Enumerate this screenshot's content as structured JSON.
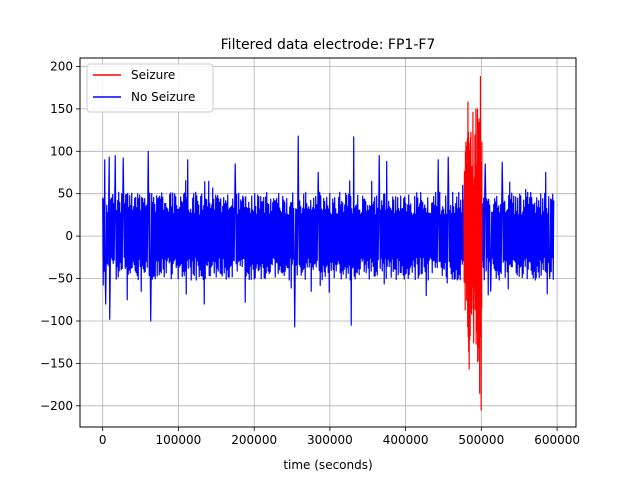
{
  "chart_data": {
    "type": "line",
    "title": "Filtered data electrode: FP1-F7",
    "xlabel": "time (seconds)",
    "ylabel": "",
    "xlim": [
      -30000,
      625000
    ],
    "ylim": [
      -225,
      210
    ],
    "xticks": [
      0,
      100000,
      200000,
      300000,
      400000,
      500000,
      600000
    ],
    "xtick_labels": [
      "0",
      "100000",
      "200000",
      "300000",
      "400000",
      "500000",
      "600000"
    ],
    "yticks": [
      200,
      150,
      100,
      50,
      0,
      -50,
      -100,
      -150,
      -200
    ],
    "ytick_labels": [
      "200",
      "150",
      "100",
      "50",
      "0",
      "−50",
      "−100",
      "−150",
      "−200"
    ],
    "grid": true,
    "legend_position": "top-left",
    "series": [
      {
        "name": "Seizure",
        "color": "#ff0000",
        "x_range": [
          477000,
          501000
        ],
        "envelope": {
          "x": [
            477000,
            480000,
            483000,
            486000,
            489000,
            492000,
            495000,
            498000,
            501000
          ],
          "max": [
            65,
            120,
            175,
            150,
            165,
            175,
            160,
            188,
            125
          ],
          "min": [
            -70,
            -110,
            -163,
            -145,
            -155,
            -170,
            -185,
            -205,
            -110
          ]
        },
        "peaks": [
          {
            "x": 499000,
            "y": 188
          },
          {
            "x": 500000,
            "y": -205
          }
        ]
      },
      {
        "name": "No Seizure",
        "color": "#0000ff",
        "x_range": [
          0,
          596000
        ],
        "typical_amplitude": 45,
        "peaks": [
          {
            "x": 2500,
            "y": 90
          },
          {
            "x": 4000,
            "y": -80
          },
          {
            "x": 8000,
            "y": 93
          },
          {
            "x": 9000,
            "y": -98
          },
          {
            "x": 16000,
            "y": 95
          },
          {
            "x": 27000,
            "y": 92
          },
          {
            "x": 32000,
            "y": -75
          },
          {
            "x": 60000,
            "y": 100
          },
          {
            "x": 63000,
            "y": -100
          },
          {
            "x": 112000,
            "y": 90
          },
          {
            "x": 134000,
            "y": -80
          },
          {
            "x": 175000,
            "y": 85
          },
          {
            "x": 188000,
            "y": -78
          },
          {
            "x": 253000,
            "y": -107
          },
          {
            "x": 258000,
            "y": 118
          },
          {
            "x": 284000,
            "y": 75
          },
          {
            "x": 328000,
            "y": -105
          },
          {
            "x": 331000,
            "y": 117
          },
          {
            "x": 365000,
            "y": 95
          },
          {
            "x": 375000,
            "y": 88
          },
          {
            "x": 427000,
            "y": -70
          },
          {
            "x": 443000,
            "y": 90
          },
          {
            "x": 456000,
            "y": 93
          },
          {
            "x": 475000,
            "y": 60
          },
          {
            "x": 505000,
            "y": 85
          },
          {
            "x": 512000,
            "y": -65
          },
          {
            "x": 527000,
            "y": 87
          },
          {
            "x": 535000,
            "y": -62
          },
          {
            "x": 558000,
            "y": 55
          },
          {
            "x": 585000,
            "y": 75
          },
          {
            "x": 590000,
            "y": -50
          }
        ]
      }
    ]
  }
}
